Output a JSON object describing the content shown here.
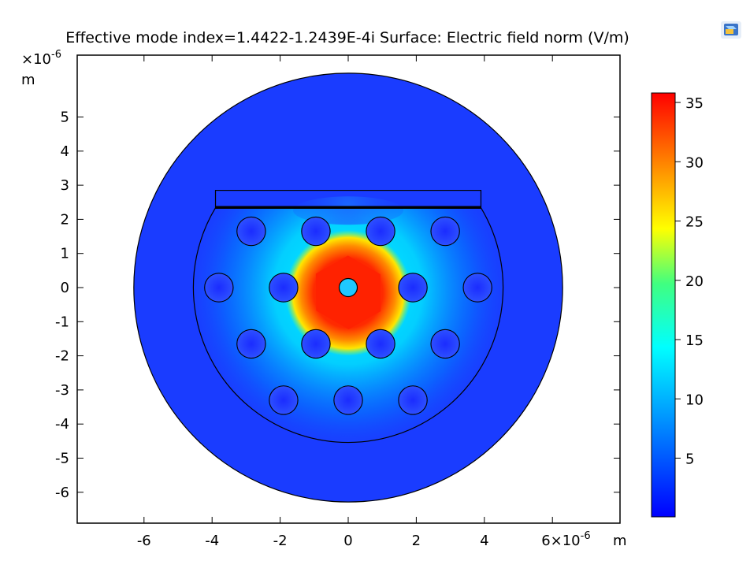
{
  "chart_data": {
    "type": "heatmap",
    "title": "Effective mode index=1.4422-1.2439E-4i Surface: Electric field norm (V/m)",
    "x_axis": {
      "ticks": [
        "-6",
        "-4",
        "-2",
        "0",
        "2",
        "4",
        "6×10⁻⁶"
      ],
      "tick_values": [
        -6,
        -4,
        -2,
        0,
        2,
        4,
        6
      ],
      "unit": "m",
      "range": [
        -7.9,
        8.0
      ]
    },
    "y_axis": {
      "ticks": [
        "5",
        "4",
        "3",
        "2",
        "1",
        "0",
        "-1",
        "-2",
        "-3",
        "-4",
        "-5",
        "-6"
      ],
      "tick_values": [
        5,
        4,
        3,
        2,
        1,
        0,
        -1,
        -2,
        -3,
        -4,
        -5,
        -6
      ],
      "multiplier": "×10⁻⁶",
      "unit": "m",
      "range": [
        -6.9,
        6.9
      ]
    },
    "colorbar": {
      "ticks": [
        "35",
        "30",
        "25",
        "20",
        "15",
        "10",
        "5"
      ],
      "tick_values": [
        35,
        30,
        25,
        20,
        15,
        10,
        5
      ],
      "min": 0.05,
      "max": 35.8,
      "colormap": "rainbow"
    },
    "geometry": {
      "outer_circle": {
        "cx": 0,
        "cy": 0,
        "r": 6.3
      },
      "inner_semicircle": {
        "cx": 0,
        "cy": 0,
        "r": 4.55,
        "flat_top_y": 2.35
      },
      "top_rect": {
        "x0": -3.9,
        "x1": 3.9,
        "y0": 2.35,
        "y1": 2.85
      },
      "core": {
        "cx": 0,
        "cy": 0,
        "r": 0.22
      },
      "holes_radius": 0.42,
      "holes": [
        [
          -2.85,
          1.65
        ],
        [
          -0.95,
          1.65
        ],
        [
          0.95,
          1.65
        ],
        [
          2.85,
          1.65
        ],
        [
          -3.8,
          0
        ],
        [
          -1.9,
          0
        ],
        [
          1.9,
          0
        ],
        [
          3.8,
          0
        ],
        [
          -2.85,
          -1.65
        ],
        [
          -0.95,
          -1.65
        ],
        [
          0.95,
          -1.65
        ],
        [
          2.85,
          -1.65
        ],
        [
          -1.9,
          -3.3
        ],
        [
          0,
          -3.3
        ],
        [
          1.9,
          -3.3
        ]
      ]
    },
    "field_peak_value": 35.8,
    "background_value": 1
  },
  "corner_icon": "comsol-cube-icon"
}
